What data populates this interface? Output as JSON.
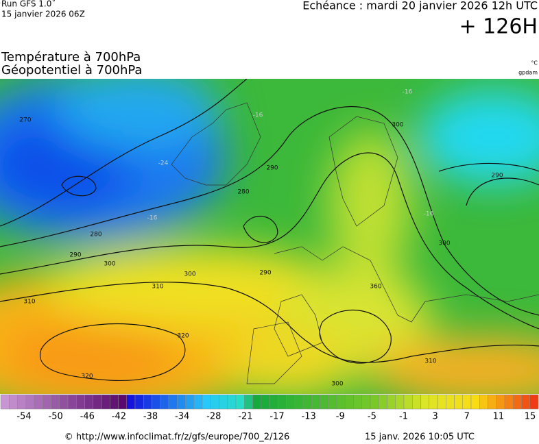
{
  "header": {
    "run": "Run GFS 1.0˚",
    "run_date": "15 janvier 2026 06Z",
    "forecast": "Echéance : mardi 20 janvier 2026 12h UTC",
    "lead": "+ 126H"
  },
  "titles": [
    "Température à 700hPa",
    "Géopotentiel à 700hPa"
  ],
  "units": [
    "°C",
    "gpdam"
  ],
  "contour_labels": [
    270,
    280,
    280,
    290,
    290,
    290,
    290,
    300,
    300,
    300,
    300,
    300,
    310,
    310,
    310,
    320,
    320,
    360,
    -16,
    -24,
    -16,
    -16,
    -16
  ],
  "legend": {
    "labels": [
      -54,
      -50,
      -46,
      -42,
      -38,
      -34,
      -28,
      -21,
      -17,
      -13,
      -9,
      -5,
      -1,
      3,
      7,
      11,
      15
    ]
  },
  "footer": {
    "url": "© http://www.infoclimat.fr/z/gfs/europe/700_2/126",
    "timestamp": "15 janv. 2026 10:05 UTC"
  }
}
